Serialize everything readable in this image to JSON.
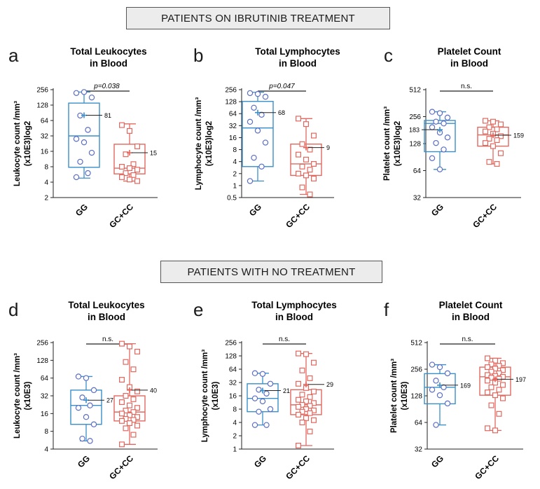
{
  "sections": {
    "top_title": "PATIENTS ON IBRUTINIB TREATMENT",
    "bottom_title": "PATIENTS WITH NO TREATMENT"
  },
  "colors": {
    "gg": "#3a8fc9",
    "gc": "#e2685f",
    "gg_point": "#5b6ec4",
    "gc_point": "#e2685f"
  },
  "chart_data": [
    {
      "type": "box",
      "panel": "a",
      "title": [
        "Total Leukocytes",
        "in Blood"
      ],
      "ylabel": [
        "Leukocyte count /mm³",
        "(x10E3)log2"
      ],
      "categories": [
        "GG",
        "GC+CC"
      ],
      "yscale": "log2",
      "yticks": [
        "2",
        "4",
        "8",
        "16",
        "32",
        "64",
        "128",
        "256"
      ],
      "ylim": [
        2,
        256
      ],
      "annotation": "p=0.038",
      "series": [
        {
          "name": "GG",
          "min": 4.8,
          "q1": 7.8,
          "median": 32,
          "q3": 140,
          "max": 230,
          "mean": 81,
          "mean_label": "81",
          "points": [
            220,
            230,
            180,
            80,
            42,
            28,
            24,
            15,
            10,
            6,
            5
          ]
        },
        {
          "name": "GC+CC",
          "min": 4.2,
          "q1": 5.8,
          "median": 7.5,
          "q3": 22,
          "max": 55,
          "mean": 15,
          "mean_label": "15",
          "points": [
            52,
            40,
            20,
            14,
            9,
            8,
            7.5,
            7,
            6,
            5.5,
            5,
            4.5,
            4.2
          ]
        }
      ]
    },
    {
      "type": "box",
      "panel": "b",
      "title": [
        "Total Lymphocytes",
        "in Blood"
      ],
      "ylabel": [
        "Lymphocyte count /mm³",
        "(x10E3)log2"
      ],
      "categories": [
        "GG",
        "GC+CC"
      ],
      "yscale": "log2",
      "yticks": [
        "0.5",
        "1",
        "2",
        "4",
        "8",
        "16",
        "32",
        "64",
        "128",
        "256"
      ],
      "ylim": [
        0.5,
        256
      ],
      "annotation": "p=0.047",
      "series": [
        {
          "name": "GG",
          "min": 1.3,
          "q1": 3,
          "median": 28,
          "q3": 130,
          "max": 220,
          "mean": 68,
          "mean_label": "68",
          "points": [
            210,
            200,
            170,
            90,
            60,
            40,
            24,
            12,
            5,
            3,
            1.3
          ]
        },
        {
          "name": "GC+CC",
          "min": 0.6,
          "q1": 1.8,
          "median": 3.5,
          "q3": 11,
          "max": 48,
          "mean": 9,
          "mean_label": "9",
          "points": [
            48,
            35,
            18,
            11,
            8,
            6,
            4.5,
            3.5,
            3,
            2.5,
            2,
            1.8,
            1.5,
            0.9,
            0.6
          ]
        }
      ]
    },
    {
      "type": "box",
      "panel": "c",
      "title": [
        "Platelet Count",
        "in Blood"
      ],
      "ylabel": [
        "Platelet count /mm³",
        "(x10E3)log2"
      ],
      "categories": [
        "GG",
        "GC+CC"
      ],
      "yscale": "log2",
      "yticks": [
        "32",
        "64",
        "128",
        "256",
        "512"
      ],
      "ylim": [
        32,
        512
      ],
      "annotation": "n.s.",
      "series": [
        {
          "name": "GG",
          "min": 66,
          "q1": 104,
          "median": 215,
          "q3": 232,
          "max": 290,
          "mean": 183,
          "mean_label": "183",
          "points": [
            290,
            280,
            250,
            225,
            215,
            195,
            170,
            150,
            130,
            110,
            88,
            66
          ]
        },
        {
          "name": "GC+CC",
          "min": 76,
          "q1": 120,
          "median": 160,
          "q3": 195,
          "max": 230,
          "mean": 159,
          "mean_label": "159",
          "points": [
            230,
            225,
            210,
            195,
            185,
            175,
            165,
            155,
            145,
            140,
            130,
            120,
            100,
            80,
            76
          ]
        }
      ]
    },
    {
      "type": "box",
      "panel": "d",
      "title": [
        "Total Leukocytes",
        "in Blood"
      ],
      "ylabel": [
        "Leukocyte count /mm³",
        "(x10E3)"
      ],
      "categories": [
        "GG",
        "GC+CC"
      ],
      "yscale": "log2",
      "yticks": [
        "4",
        "8",
        "16",
        "32",
        "64",
        "128",
        "256"
      ],
      "ylim": [
        4,
        256
      ],
      "annotation": "n.s.",
      "series": [
        {
          "name": "GG",
          "min": 5.5,
          "q1": 10.5,
          "median": 22,
          "q3": 40,
          "max": 68,
          "mean": 27,
          "mean_label": "27",
          "points": [
            68,
            64,
            40,
            30,
            22,
            20,
            14,
            10.5,
            6,
            5.5
          ]
        },
        {
          "name": "GC+CC",
          "min": 4.8,
          "q1": 12,
          "median": 17,
          "q3": 32,
          "max": 245,
          "mean": 40,
          "mean_label": "40",
          "points": [
            245,
            220,
            180,
            120,
            90,
            60,
            45,
            38,
            32,
            28,
            25,
            22,
            20,
            18,
            17,
            16,
            15,
            14,
            13,
            12.5,
            12,
            11,
            10,
            9,
            7,
            4.8
          ]
        }
      ]
    },
    {
      "type": "box",
      "panel": "e",
      "title": [
        "Total Lymphocytes",
        "in Blood"
      ],
      "ylabel": [
        "Lymphocyte count /mm³",
        "(x10E3)"
      ],
      "categories": [
        "GG",
        "GC+CC"
      ],
      "yscale": "log2",
      "yticks": [
        "1",
        "2",
        "4",
        "8",
        "16",
        "32",
        "64",
        "128",
        "256"
      ],
      "ylim": [
        1,
        256
      ],
      "annotation": "n.s.",
      "series": [
        {
          "name": "GG",
          "min": 3.5,
          "q1": 7,
          "median": 14,
          "q3": 30,
          "max": 52,
          "mean": 21,
          "mean_label": "21",
          "points": [
            52,
            50,
            30,
            22,
            18,
            14,
            12,
            8,
            7,
            3.5,
            3.5
          ]
        },
        {
          "name": "GC+CC",
          "min": 1.2,
          "q1": 6,
          "median": 10,
          "q3": 22,
          "max": 145,
          "mean": 29,
          "mean_label": "29",
          "points": [
            145,
            140,
            90,
            60,
            40,
            30,
            24,
            20,
            17,
            15,
            13,
            12,
            11,
            10,
            9.5,
            9,
            8,
            7.5,
            7,
            6.5,
            6,
            5,
            4.5,
            4,
            2.5,
            1.2
          ]
        }
      ]
    },
    {
      "type": "box",
      "panel": "f",
      "title": [
        "Platelet Count",
        "in Blood"
      ],
      "ylabel": [
        "Platelet count /mm³",
        "(x10E3)"
      ],
      "categories": [
        "GG",
        "GC+CC"
      ],
      "yscale": "log2",
      "yticks": [
        "32",
        "64",
        "128",
        "256",
        "512"
      ],
      "ylim": [
        32,
        512
      ],
      "annotation": "n.s.",
      "series": [
        {
          "name": "GG",
          "min": 60,
          "q1": 104,
          "median": 160,
          "q3": 228,
          "max": 288,
          "mean": 169,
          "mean_label": "169",
          "points": [
            288,
            270,
            230,
            190,
            160,
            150,
            130,
            105,
            60
          ]
        },
        {
          "name": "GC+CC",
          "min": 52,
          "q1": 130,
          "median": 210,
          "q3": 270,
          "max": 340,
          "mean": 197,
          "mean_label": "197",
          "points": [
            340,
            320,
            300,
            290,
            280,
            270,
            260,
            250,
            240,
            230,
            220,
            215,
            210,
            205,
            200,
            190,
            180,
            170,
            160,
            150,
            140,
            130,
            120,
            100,
            80,
            55,
            52
          ]
        }
      ]
    }
  ]
}
